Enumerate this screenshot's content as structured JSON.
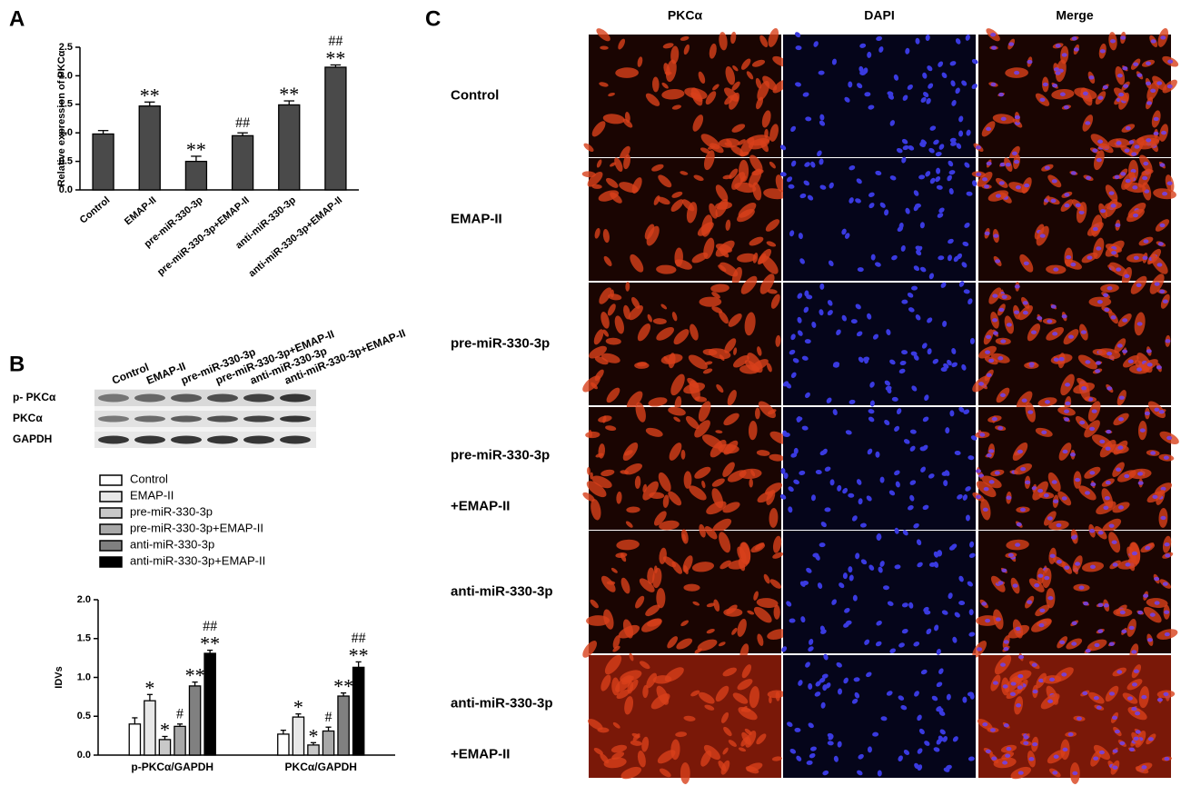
{
  "panels": {
    "a": "A",
    "b": "B",
    "c": "C"
  },
  "chart_data": [
    {
      "type": "bar",
      "ylabel": "Relative expression of PKCα",
      "categories": [
        "Control",
        "EMAP-II",
        "pre-miR-330-3p",
        "pre-miR-330-3p+EMAP-II",
        "anti-miR-330-3p",
        "anti-miR-330-3p+EMAP-II"
      ],
      "values": [
        0.98,
        1.47,
        0.5,
        0.95,
        1.49,
        2.15
      ],
      "errors": [
        0.06,
        0.07,
        0.09,
        0.05,
        0.07,
        0.04
      ],
      "annotations": [
        [],
        [
          "**"
        ],
        [
          "**"
        ],
        [
          "##"
        ],
        [
          "**"
        ],
        [
          "##",
          "**"
        ]
      ],
      "color": "#4a4a4a",
      "ylim": [
        0,
        2.5
      ],
      "yticks": [
        {
          "value": 0,
          "label": "0.0"
        },
        {
          "value": 0.5,
          "label": "0.5"
        },
        {
          "value": 1,
          "label": "1.0"
        },
        {
          "value": 1.5,
          "label": "1.5"
        },
        {
          "value": 2,
          "label": "2.0"
        },
        {
          "value": 2.5,
          "label": "2.5"
        }
      ]
    },
    {
      "type": "bar",
      "ylabel": "IDVs",
      "legend": "above",
      "categories": [
        "p-PKCα/GAPDH",
        "PKCα/GAPDH"
      ],
      "series": [
        {
          "name": "Control",
          "color": "#ffffff",
          "values": [
            0.4,
            0.27
          ],
          "errors": [
            0.08,
            0.05
          ],
          "annotations": [
            [],
            []
          ]
        },
        {
          "name": "EMAP-II",
          "color": "#e8e8e8",
          "values": [
            0.7,
            0.49
          ],
          "errors": [
            0.08,
            0.04
          ],
          "annotations": [
            [
              "*"
            ],
            [
              "*"
            ]
          ]
        },
        {
          "name": "pre-miR-330-3p",
          "color": "#c8c8c8",
          "values": [
            0.2,
            0.13
          ],
          "errors": [
            0.04,
            0.03
          ],
          "annotations": [
            [
              "*"
            ],
            [
              "*"
            ]
          ]
        },
        {
          "name": "pre-miR-330-3p+EMAP-II",
          "color": "#a8a8a8",
          "values": [
            0.37,
            0.31
          ],
          "errors": [
            0.03,
            0.05
          ],
          "annotations": [
            [
              "#"
            ],
            [
              "#"
            ]
          ]
        },
        {
          "name": "anti-miR-330-3p",
          "color": "#808080",
          "values": [
            0.89,
            0.76
          ],
          "errors": [
            0.05,
            0.04
          ],
          "annotations": [
            [
              "**"
            ],
            [
              "**"
            ]
          ]
        },
        {
          "name": "anti-miR-330-3p+EMAP-II",
          "color": "#000000",
          "values": [
            1.31,
            1.13
          ],
          "errors": [
            0.04,
            0.07
          ],
          "annotations": [
            [
              "##",
              "**"
            ],
            [
              "##",
              "**"
            ]
          ]
        }
      ],
      "ylim": [
        0,
        2
      ],
      "yticks": [
        {
          "value": 0,
          "label": "0.0"
        },
        {
          "value": 0.5,
          "label": "0.5"
        },
        {
          "value": 1,
          "label": "1.0"
        },
        {
          "value": 1.5,
          "label": "1.5"
        },
        {
          "value": 2,
          "label": "2.0"
        }
      ]
    }
  ],
  "blot": {
    "lanes": [
      "Control",
      "EMAP-II",
      "pre-miR-330-3p",
      "pre-miR-330-3p+EMAP-II",
      "anti-miR-330-3p",
      "anti-miR-330-3p+EMAP-II"
    ],
    "rows": [
      "p- PKCα",
      "PKCα",
      "GAPDH"
    ]
  },
  "micrographs": {
    "columns": [
      "PKCα",
      "DAPI",
      "Merge"
    ],
    "rows": [
      [
        "Control"
      ],
      [
        "EMAP-II"
      ],
      [
        "pre-miR-330-3p"
      ],
      [
        "pre-miR-330-3p",
        "+EMAP-II"
      ],
      [
        "anti-miR-330-3p"
      ],
      [
        "anti-miR-330-3p",
        "+EMAP-II"
      ]
    ]
  }
}
